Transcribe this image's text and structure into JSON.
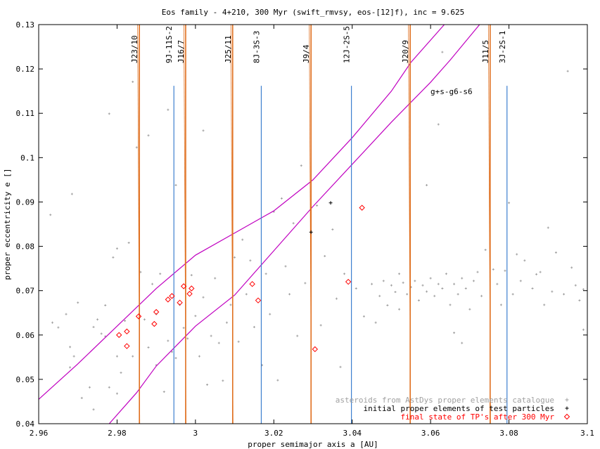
{
  "chart_data": {
    "type": "scatter",
    "title": "Eos family - 4+210, 300 Myr (swift_rmvsy, eos-[12]f), inc = 9.625",
    "xlabel": "proper semimajor axis a [AU]",
    "ylabel": "proper eccentricity e []",
    "xlim": [
      2.96,
      3.1
    ],
    "ylim": [
      0.04,
      0.13
    ],
    "xticks": [
      2.96,
      2.98,
      3.0,
      3.02,
      3.04,
      3.06,
      3.08,
      3.1
    ],
    "xtick_labels": [
      "2.96",
      "2.98",
      "3",
      "3.02",
      "3.04",
      "3.06",
      "3.08",
      "3.1"
    ],
    "yticks": [
      0.04,
      0.05,
      0.06,
      0.07,
      0.08,
      0.09,
      0.1,
      0.11,
      0.12,
      0.13
    ],
    "ytick_labels": [
      "0.04",
      "0.05",
      "0.06",
      "0.07",
      "0.08",
      "0.09",
      "0.1",
      "0.11",
      "0.12",
      "0.13"
    ],
    "grid": false,
    "legend_position": "bottom-right",
    "legend": [
      {
        "label": "asteroids from AstDys proper elements catalogue",
        "color": "#a0a0a0",
        "marker": "+"
      },
      {
        "label": "initial proper elements of test particles",
        "color": "#000000",
        "marker": "+"
      },
      {
        "label": "final state of TP's after 300 Myr",
        "color": "#ff0000",
        "marker": "diamond"
      }
    ],
    "resonance_lines": [
      {
        "label": "J23/10",
        "a": 2.9857,
        "color": "#e07020",
        "kind": "mmr"
      },
      {
        "label": "9J-11S-2",
        "a": 2.9945,
        "color": "#3d7fcf",
        "kind": "three-body"
      },
      {
        "label": "J16/7",
        "a": 2.9975,
        "color": "#e07020",
        "kind": "mmr"
      },
      {
        "label": "J25/11",
        "a": 3.0095,
        "color": "#e07020",
        "kind": "mmr"
      },
      {
        "label": "8J-3S-3",
        "a": 3.0168,
        "color": "#3d7fcf",
        "kind": "three-body"
      },
      {
        "label": "J9/4",
        "a": 3.0295,
        "color": "#e07020",
        "kind": "mmr"
      },
      {
        "label": "12J-2S-5",
        "a": 3.0398,
        "color": "#3d7fcf",
        "kind": "three-body"
      },
      {
        "label": "J20/9",
        "a": 3.0548,
        "color": "#e07020",
        "kind": "mmr"
      },
      {
        "label": "J11/5",
        "a": 3.0752,
        "color": "#e07020",
        "kind": "mmr"
      },
      {
        "label": "3J-2S-1",
        "a": 3.0795,
        "color": "#3d7fcf",
        "kind": "three-body"
      }
    ],
    "secular_resonance": {
      "label": "g+s-g6-s6",
      "color": "#c000c0",
      "upper_boundary": [
        [
          2.96,
          0.0455
        ],
        [
          2.97,
          0.0535
        ],
        [
          2.98,
          0.062
        ],
        [
          2.99,
          0.0705
        ],
        [
          3.0,
          0.078
        ],
        [
          3.01,
          0.083
        ],
        [
          3.02,
          0.088
        ],
        [
          3.03,
          0.095
        ],
        [
          3.04,
          0.1045
        ],
        [
          3.05,
          0.115
        ],
        [
          3.055,
          0.1215
        ],
        [
          3.0635,
          0.13
        ]
      ],
      "lower_boundary": [
        [
          2.978,
          0.04
        ],
        [
          2.985,
          0.047
        ],
        [
          2.99,
          0.053
        ],
        [
          3.0,
          0.062
        ],
        [
          3.01,
          0.069
        ],
        [
          3.02,
          0.079
        ],
        [
          3.03,
          0.089
        ],
        [
          3.04,
          0.0985
        ],
        [
          3.05,
          0.108
        ],
        [
          3.06,
          0.117
        ],
        [
          3.065,
          0.122
        ],
        [
          3.0725,
          0.13
        ]
      ]
    },
    "test_particles_initial": [
      [
        3.0295,
        0.0832
      ],
      [
        3.0345,
        0.0898
      ]
    ],
    "test_particles_final": [
      [
        2.9805,
        0.06
      ],
      [
        2.9825,
        0.0608
      ],
      [
        2.9825,
        0.0575
      ],
      [
        2.9855,
        0.0642
      ],
      [
        2.9895,
        0.0625
      ],
      [
        2.99,
        0.0652
      ],
      [
        2.993,
        0.068
      ],
      [
        2.994,
        0.0688
      ],
      [
        2.996,
        0.0673
      ],
      [
        2.997,
        0.071
      ],
      [
        2.999,
        0.0705
      ],
      [
        2.9985,
        0.0693
      ],
      [
        3.0145,
        0.0715
      ],
      [
        3.016,
        0.0678
      ],
      [
        3.0305,
        0.0568
      ],
      [
        3.039,
        0.072
      ],
      [
        3.0425,
        0.0887
      ]
    ],
    "catalogue_asteroids": [
      [
        2.963,
        0.0871
      ],
      [
        2.9635,
        0.0628
      ],
      [
        2.965,
        0.0617
      ],
      [
        2.967,
        0.0647
      ],
      [
        2.968,
        0.0527
      ],
      [
        2.968,
        0.0573
      ],
      [
        2.9685,
        0.0918
      ],
      [
        2.969,
        0.0552
      ],
      [
        2.97,
        0.0673
      ],
      [
        2.971,
        0.0458
      ],
      [
        2.973,
        0.0482
      ],
      [
        2.974,
        0.0618
      ],
      [
        2.974,
        0.0432
      ],
      [
        2.975,
        0.0635
      ],
      [
        2.976,
        0.0603
      ],
      [
        2.977,
        0.0667
      ],
      [
        2.977,
        0.0597
      ],
      [
        2.978,
        0.0482
      ],
      [
        2.978,
        0.1099
      ],
      [
        2.979,
        0.0775
      ],
      [
        2.98,
        0.0795
      ],
      [
        2.98,
        0.0552
      ],
      [
        2.98,
        0.0468
      ],
      [
        2.981,
        0.0515
      ],
      [
        2.982,
        0.0632
      ],
      [
        2.983,
        0.0808
      ],
      [
        2.984,
        0.1171
      ],
      [
        2.984,
        0.0552
      ],
      [
        2.985,
        0.1023
      ],
      [
        2.986,
        0.0742
      ],
      [
        2.987,
        0.0635
      ],
      [
        2.988,
        0.105
      ],
      [
        2.988,
        0.0572
      ],
      [
        2.989,
        0.0715
      ],
      [
        2.99,
        0.0647
      ],
      [
        2.99,
        0.0532
      ],
      [
        2.991,
        0.0738
      ],
      [
        2.992,
        0.0472
      ],
      [
        2.993,
        0.0587
      ],
      [
        2.993,
        0.1108
      ],
      [
        2.994,
        0.0562
      ],
      [
        2.995,
        0.0938
      ],
      [
        2.995,
        0.0548
      ],
      [
        2.996,
        0.0668
      ],
      [
        2.997,
        0.0616
      ],
      [
        2.998,
        0.0592
      ],
      [
        2.999,
        0.0735
      ],
      [
        3.0,
        0.0643
      ],
      [
        3.001,
        0.0552
      ],
      [
        3.002,
        0.0685
      ],
      [
        3.002,
        0.1061
      ],
      [
        3.003,
        0.0488
      ],
      [
        3.004,
        0.0598
      ],
      [
        3.005,
        0.0728
      ],
      [
        3.006,
        0.0582
      ],
      [
        3.007,
        0.0497
      ],
      [
        3.008,
        0.0628
      ],
      [
        3.009,
        0.0668
      ],
      [
        3.01,
        0.0775
      ],
      [
        3.011,
        0.0585
      ],
      [
        3.012,
        0.0815
      ],
      [
        3.013,
        0.0692
      ],
      [
        3.014,
        0.0768
      ],
      [
        3.015,
        0.0618
      ],
      [
        3.017,
        0.0532
      ],
      [
        3.018,
        0.0738
      ],
      [
        3.019,
        0.0647
      ],
      [
        3.02,
        0.0878
      ],
      [
        3.021,
        0.0498
      ],
      [
        3.022,
        0.0908
      ],
      [
        3.023,
        0.0755
      ],
      [
        3.024,
        0.0692
      ],
      [
        3.025,
        0.0852
      ],
      [
        3.026,
        0.0598
      ],
      [
        3.027,
        0.0982
      ],
      [
        3.028,
        0.0717
      ],
      [
        3.031,
        0.0892
      ],
      [
        3.032,
        0.0622
      ],
      [
        3.033,
        0.0778
      ],
      [
        3.035,
        0.0838
      ],
      [
        3.036,
        0.0682
      ],
      [
        3.037,
        0.0528
      ],
      [
        3.038,
        0.0738
      ],
      [
        3.041,
        0.0705
      ],
      [
        3.043,
        0.0642
      ],
      [
        3.045,
        0.0715
      ],
      [
        3.046,
        0.0628
      ],
      [
        3.047,
        0.0688
      ],
      [
        3.048,
        0.0722
      ],
      [
        3.049,
        0.0667
      ],
      [
        3.05,
        0.0712
      ],
      [
        3.051,
        0.0697
      ],
      [
        3.052,
        0.0738
      ],
      [
        3.052,
        0.0658
      ],
      [
        3.053,
        0.0718
      ],
      [
        3.054,
        0.0692
      ],
      [
        3.055,
        0.0708
      ],
      [
        3.056,
        0.0722
      ],
      [
        3.057,
        0.0678
      ],
      [
        3.058,
        0.0712
      ],
      [
        3.059,
        0.0698
      ],
      [
        3.06,
        0.0728
      ],
      [
        3.061,
        0.0688
      ],
      [
        3.062,
        0.0715
      ],
      [
        3.063,
        0.0705
      ],
      [
        3.064,
        0.0738
      ],
      [
        3.065,
        0.0668
      ],
      [
        3.066,
        0.0715
      ],
      [
        3.067,
        0.0692
      ],
      [
        3.068,
        0.0728
      ],
      [
        3.069,
        0.0705
      ],
      [
        3.07,
        0.0658
      ],
      [
        3.071,
        0.0722
      ],
      [
        3.072,
        0.0742
      ],
      [
        3.073,
        0.0688
      ],
      [
        3.059,
        0.0938
      ],
      [
        3.062,
        0.1075
      ],
      [
        3.063,
        0.1238
      ],
      [
        3.066,
        0.0605
      ],
      [
        3.068,
        0.0582
      ],
      [
        3.074,
        0.0792
      ],
      [
        3.076,
        0.0748
      ],
      [
        3.077,
        0.0715
      ],
      [
        3.078,
        0.0668
      ],
      [
        3.079,
        0.0745
      ],
      [
        3.08,
        0.0898
      ],
      [
        3.081,
        0.0692
      ],
      [
        3.082,
        0.0782
      ],
      [
        3.083,
        0.0722
      ],
      [
        3.084,
        0.0768
      ],
      [
        3.086,
        0.0705
      ],
      [
        3.087,
        0.0737
      ],
      [
        3.088,
        0.0742
      ],
      [
        3.089,
        0.0668
      ],
      [
        3.09,
        0.0842
      ],
      [
        3.091,
        0.0698
      ],
      [
        3.092,
        0.0786
      ],
      [
        3.094,
        0.0692
      ],
      [
        3.095,
        0.1195
      ],
      [
        3.096,
        0.0752
      ],
      [
        3.097,
        0.0712
      ],
      [
        3.098,
        0.0678
      ],
      [
        3.099,
        0.0612
      ],
      [
        3.099,
        0.0703
      ]
    ]
  }
}
